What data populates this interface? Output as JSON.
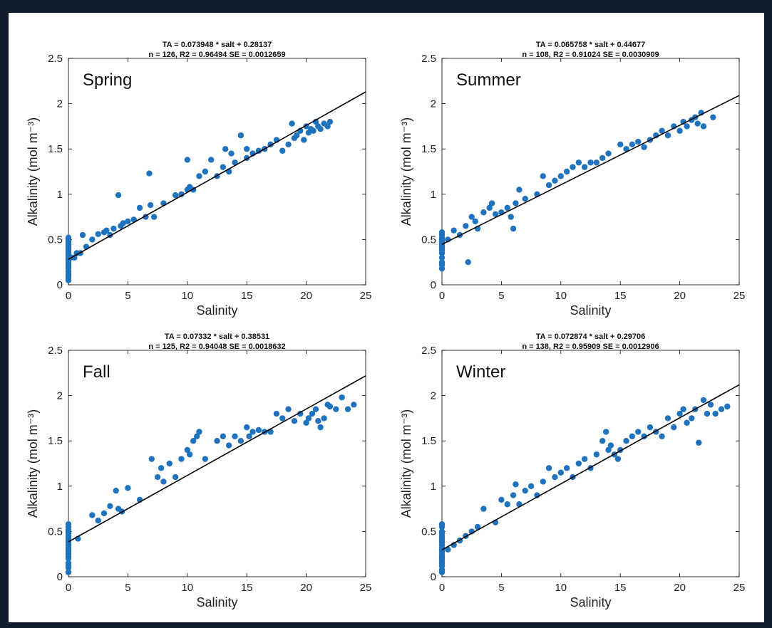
{
  "chart_data": [
    {
      "type": "scatter",
      "title_line1": "TA = 0.073948 * salt + 0.28137",
      "title_line2": "n = 126, R2 = 0.96494 SE = 0.0012659",
      "season_label": "Spring",
      "xlabel": "Salinity",
      "ylabel": "Alkalinity (mol m⁻³)",
      "xlim": [
        0,
        25
      ],
      "ylim": [
        0,
        2.5
      ],
      "xticks": [
        "0",
        "5",
        "10",
        "15",
        "20",
        "25"
      ],
      "yticks": [
        "0",
        "0.5",
        "1",
        "1.5",
        "2",
        "2.5"
      ],
      "fit": {
        "slope": 0.073948,
        "intercept": 0.28137,
        "x_range": [
          0,
          25
        ]
      },
      "series": [
        {
          "x": [
            0,
            0,
            0,
            0,
            0,
            0,
            0,
            0,
            0,
            0,
            0,
            0,
            0,
            0,
            0,
            0,
            0,
            0,
            0,
            0,
            0,
            0,
            0,
            0,
            0,
            0,
            0.2,
            0.5,
            0.7,
            1.0,
            1.2,
            1.5,
            2.0,
            2.5,
            3.0,
            3.2,
            3.5,
            3.8,
            4.2,
            4.4,
            4.6,
            5.0,
            5.5,
            6.0,
            6.5,
            6.8,
            6.9,
            7.2,
            8.0,
            9.0,
            9.5,
            10.0,
            10.0,
            10.2,
            10.5,
            11.0,
            11.5,
            12.0,
            12.5,
            13.0,
            13.2,
            13.5,
            13.7,
            14.0,
            14.5,
            15.0,
            15.0,
            15.5,
            16.0,
            16.5,
            17.0,
            17.5,
            18.0,
            18.5,
            18.8,
            19.0,
            19.2,
            19.5,
            19.8,
            20.0,
            20.2,
            20.4,
            20.6,
            20.8,
            21.0,
            21.2,
            21.5,
            21.8,
            22.0
          ],
          "y": [
            0.05,
            0.08,
            0.1,
            0.12,
            0.15,
            0.18,
            0.2,
            0.22,
            0.25,
            0.28,
            0.3,
            0.32,
            0.35,
            0.38,
            0.4,
            0.42,
            0.44,
            0.46,
            0.48,
            0.5,
            0.52,
            0.27,
            0.33,
            0.36,
            0.41,
            0.45,
            0.3,
            0.3,
            0.35,
            0.35,
            0.55,
            0.42,
            0.5,
            0.56,
            0.58,
            0.6,
            0.55,
            0.62,
            0.99,
            0.65,
            0.68,
            0.7,
            0.72,
            0.85,
            0.75,
            1.23,
            0.88,
            0.75,
            0.9,
            0.99,
            1.0,
            1.38,
            1.05,
            1.08,
            1.05,
            1.2,
            1.25,
            1.38,
            1.2,
            1.3,
            1.5,
            1.25,
            1.45,
            1.35,
            1.65,
            1.4,
            1.5,
            1.45,
            1.48,
            1.5,
            1.55,
            1.6,
            1.48,
            1.55,
            1.78,
            1.62,
            1.65,
            1.7,
            1.6,
            1.75,
            1.68,
            1.72,
            1.7,
            1.8,
            1.75,
            1.72,
            1.78,
            1.75,
            1.8
          ]
        }
      ]
    },
    {
      "type": "scatter",
      "title_line1": "TA = 0.065758 * salt + 0.44677",
      "title_line2": "n = 108, R2 = 0.91024 SE = 0.0030909",
      "season_label": "Summer",
      "xlabel": "Salinity",
      "ylabel": "Alkalinity (mol m⁻³)",
      "xlim": [
        0,
        25
      ],
      "ylim": [
        0,
        2.5
      ],
      "xticks": [
        "0",
        "5",
        "10",
        "15",
        "20",
        "25"
      ],
      "yticks": [
        "0",
        "0.5",
        "1",
        "1.5",
        "2",
        "2.5"
      ],
      "fit": {
        "slope": 0.065758,
        "intercept": 0.44677,
        "x_range": [
          0,
          25
        ]
      },
      "series": [
        {
          "x": [
            0,
            0,
            0,
            0,
            0,
            0,
            0,
            0,
            0,
            0,
            0,
            0,
            0,
            0,
            0,
            0.5,
            1.0,
            1.5,
            2.0,
            2.2,
            2.5,
            2.8,
            3.0,
            3.5,
            4.0,
            4.2,
            4.5,
            5.0,
            5.5,
            5.8,
            6.0,
            6.2,
            6.5,
            7.0,
            8.0,
            8.5,
            9.0,
            9.5,
            10.0,
            10.5,
            11.0,
            11.5,
            12.0,
            12.5,
            13.0,
            13.5,
            14.0,
            15.0,
            15.5,
            16.0,
            16.5,
            17.0,
            17.5,
            18.0,
            18.5,
            19.0,
            19.5,
            20.0,
            20.3,
            20.6,
            21.0,
            21.3,
            21.5,
            21.8,
            22.0,
            22.8
          ],
          "y": [
            0.18,
            0.22,
            0.25,
            0.3,
            0.35,
            0.38,
            0.4,
            0.42,
            0.45,
            0.48,
            0.5,
            0.52,
            0.55,
            0.58,
            0.42,
            0.5,
            0.6,
            0.55,
            0.65,
            0.25,
            0.75,
            0.7,
            0.62,
            0.8,
            0.85,
            0.9,
            0.78,
            0.8,
            0.85,
            0.75,
            0.62,
            0.9,
            1.05,
            0.95,
            1.0,
            1.2,
            1.1,
            1.15,
            1.2,
            1.25,
            1.3,
            1.35,
            1.3,
            1.35,
            1.35,
            1.4,
            1.45,
            1.55,
            1.5,
            1.55,
            1.58,
            1.52,
            1.6,
            1.65,
            1.7,
            1.65,
            1.75,
            1.7,
            1.8,
            1.75,
            1.82,
            1.85,
            1.78,
            1.9,
            1.75,
            1.85
          ]
        }
      ]
    },
    {
      "type": "scatter",
      "title_line1": "TA = 0.07332 * salt + 0.38531",
      "title_line2": "n = 125, R2 = 0.94048 SE = 0.0018632",
      "season_label": "Fall",
      "xlabel": "Salinity",
      "ylabel": "Alkalinity (mol m⁻³)",
      "xlim": [
        0,
        25
      ],
      "ylim": [
        0,
        2.5
      ],
      "xticks": [
        "0",
        "5",
        "10",
        "15",
        "20",
        "25"
      ],
      "yticks": [
        "0",
        "0.5",
        "1",
        "1.5",
        "2",
        "2.5"
      ],
      "fit": {
        "slope": 0.07332,
        "intercept": 0.38531,
        "x_range": [
          0,
          25
        ]
      },
      "series": [
        {
          "x": [
            0,
            0,
            0,
            0,
            0,
            0,
            0,
            0,
            0,
            0,
            0,
            0,
            0,
            0,
            0,
            0,
            0,
            0,
            0,
            0,
            0.8,
            2.0,
            2.5,
            3.0,
            3.5,
            4.0,
            4.2,
            4.5,
            5.0,
            6.0,
            7.0,
            7.5,
            7.8,
            8.0,
            8.5,
            9.0,
            9.5,
            10.0,
            10.2,
            10.5,
            10.8,
            11.0,
            11.5,
            12.5,
            13.0,
            13.5,
            14.0,
            14.5,
            15.0,
            15.2,
            15.5,
            16.0,
            16.5,
            17.0,
            17.5,
            18.0,
            18.5,
            19.0,
            19.5,
            20.0,
            20.2,
            20.5,
            20.8,
            21.0,
            21.2,
            21.5,
            21.8,
            22.0,
            22.5,
            23.0,
            23.5,
            24.0
          ],
          "y": [
            0.05,
            0.1,
            0.15,
            0.2,
            0.25,
            0.28,
            0.3,
            0.32,
            0.35,
            0.38,
            0.4,
            0.42,
            0.45,
            0.48,
            0.5,
            0.52,
            0.55,
            0.58,
            0.12,
            0.22,
            0.42,
            0.68,
            0.62,
            0.7,
            0.78,
            0.95,
            0.75,
            0.72,
            0.98,
            0.85,
            1.3,
            1.1,
            1.2,
            1.05,
            1.25,
            1.1,
            1.3,
            1.4,
            1.35,
            1.5,
            1.55,
            1.6,
            1.3,
            1.5,
            1.55,
            1.45,
            1.55,
            1.5,
            1.65,
            1.55,
            1.6,
            1.62,
            1.6,
            1.6,
            1.8,
            1.75,
            1.85,
            1.72,
            1.8,
            1.7,
            1.75,
            1.8,
            1.85,
            1.72,
            1.65,
            1.75,
            1.9,
            1.88,
            1.85,
            1.98,
            1.85,
            1.9
          ]
        }
      ]
    },
    {
      "type": "scatter",
      "title_line1": "TA = 0.072874 * salt + 0.29706",
      "title_line2": "n = 138, R2 = 0.95909 SE = 0.0012906",
      "season_label": "Winter",
      "xlabel": "Salinity",
      "ylabel": "Alkalinity (mol m⁻³)",
      "xlim": [
        0,
        25
      ],
      "ylim": [
        0,
        2.5
      ],
      "xticks": [
        "0",
        "5",
        "10",
        "15",
        "20",
        "25"
      ],
      "yticks": [
        "0",
        "0.5",
        "1",
        "1.5",
        "2",
        "2.5"
      ],
      "fit": {
        "slope": 0.072874,
        "intercept": 0.29706,
        "x_range": [
          0,
          25
        ]
      },
      "series": [
        {
          "x": [
            0,
            0,
            0,
            0,
            0,
            0,
            0,
            0,
            0,
            0,
            0,
            0,
            0,
            0,
            0,
            0,
            0,
            0,
            0,
            0,
            0.5,
            1.0,
            1.5,
            2.0,
            2.5,
            3.0,
            3.5,
            4.5,
            5.0,
            5.5,
            6.0,
            6.2,
            6.5,
            7.0,
            7.5,
            8.0,
            8.5,
            9.0,
            9.5,
            10.0,
            10.5,
            11.0,
            11.5,
            12.0,
            12.5,
            13.0,
            13.5,
            13.8,
            14.0,
            14.2,
            14.5,
            14.8,
            15.0,
            15.5,
            16.0,
            16.5,
            17.0,
            17.5,
            18.0,
            18.5,
            19.0,
            19.5,
            20.0,
            20.3,
            20.6,
            21.0,
            21.3,
            21.6,
            22.0,
            22.3,
            22.6,
            23.0,
            23.5,
            24.0
          ],
          "y": [
            0.05,
            0.08,
            0.12,
            0.15,
            0.18,
            0.2,
            0.22,
            0.25,
            0.28,
            0.3,
            0.32,
            0.35,
            0.38,
            0.4,
            0.42,
            0.45,
            0.48,
            0.5,
            0.55,
            0.58,
            0.3,
            0.35,
            0.4,
            0.45,
            0.5,
            0.55,
            0.75,
            0.6,
            0.85,
            0.8,
            0.9,
            1.02,
            0.8,
            0.95,
            1.0,
            0.9,
            1.05,
            1.2,
            1.1,
            1.15,
            1.2,
            1.1,
            1.25,
            1.3,
            1.2,
            1.35,
            1.5,
            1.6,
            1.4,
            1.45,
            1.35,
            1.3,
            1.4,
            1.5,
            1.55,
            1.6,
            1.55,
            1.65,
            1.6,
            1.55,
            1.75,
            1.65,
            1.8,
            1.85,
            1.7,
            1.75,
            1.85,
            1.48,
            1.95,
            1.8,
            1.9,
            1.8,
            1.85,
            1.88
          ]
        }
      ]
    }
  ],
  "colors": {
    "marker": "#1f72be",
    "fit_line": "#000000",
    "axes": "#000000",
    "background": "#ffffff"
  }
}
